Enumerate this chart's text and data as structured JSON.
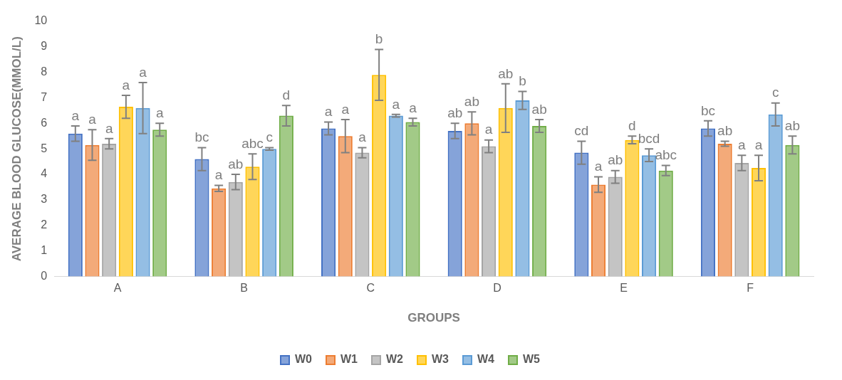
{
  "chart_data": {
    "type": "bar",
    "xlabel": "GROUPS",
    "ylabel": "AVERAGE BLOOD GLUCOSE(MMOL/L)",
    "categories": [
      "A",
      "B",
      "C",
      "D",
      "E",
      "F"
    ],
    "ylim": [
      0,
      10
    ],
    "yticks": [
      0,
      1,
      2,
      3,
      4,
      5,
      6,
      7,
      8,
      9,
      10
    ],
    "grid": false,
    "legend": "bottom",
    "series": [
      {
        "name": "W0",
        "color": "#4472c4",
        "values": [
          5.6,
          4.6,
          5.8,
          5.7,
          4.85,
          5.8
        ],
        "errors": [
          0.3,
          0.45,
          0.25,
          0.3,
          0.45,
          0.3
        ],
        "value_labels": [
          "a",
          "bc",
          "a",
          "ab",
          "cd",
          "bc"
        ]
      },
      {
        "name": "W1",
        "color": "#ed7d31",
        "values": [
          5.15,
          3.45,
          5.5,
          6.0,
          3.6,
          5.2
        ],
        "errors": [
          0.6,
          0.12,
          0.65,
          0.45,
          0.3,
          0.1
        ],
        "value_labels": [
          "a",
          "a",
          "a",
          "ab",
          "a",
          "ab"
        ]
      },
      {
        "name": "W2",
        "color": "#a5a5a5",
        "values": [
          5.2,
          3.7,
          4.85,
          5.1,
          3.9,
          4.45
        ],
        "errors": [
          0.2,
          0.3,
          0.2,
          0.25,
          0.25,
          0.3
        ],
        "value_labels": [
          "a",
          "ab",
          "a",
          "a",
          "ab",
          "a"
        ]
      },
      {
        "name": "W3",
        "color": "#ffc000",
        "values": [
          6.65,
          4.3,
          7.9,
          6.6,
          5.35,
          4.25
        ],
        "errors": [
          0.45,
          0.5,
          1.0,
          0.95,
          0.15,
          0.5
        ],
        "value_labels": [
          "a",
          "abc",
          "b",
          "ab",
          "d",
          "a"
        ]
      },
      {
        "name": "W4",
        "color": "#5b9bd5",
        "values": [
          6.6,
          5.0,
          6.3,
          6.9,
          4.75,
          6.35
        ],
        "errors": [
          1.0,
          0.05,
          0.05,
          0.35,
          0.25,
          0.45
        ],
        "value_labels": [
          "a",
          "c",
          "a",
          "b",
          "bcd",
          "c"
        ]
      },
      {
        "name": "W5",
        "color": "#70ad47",
        "values": [
          5.75,
          6.3,
          6.05,
          5.9,
          4.15,
          5.15
        ],
        "errors": [
          0.25,
          0.4,
          0.15,
          0.25,
          0.2,
          0.35
        ],
        "value_labels": [
          "a",
          "d",
          "a",
          "ab",
          "abc",
          "ab"
        ]
      }
    ]
  }
}
